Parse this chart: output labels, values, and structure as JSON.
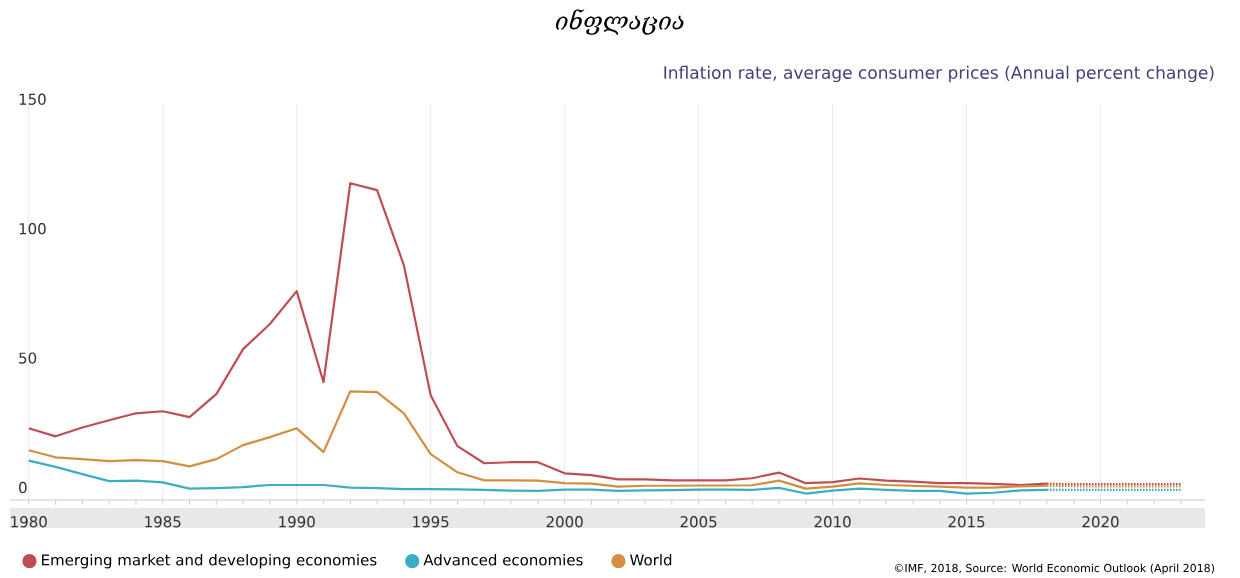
{
  "chart_data": {
    "type": "line",
    "title": "ინფლაცია",
    "subtitle": "Inflation rate, average consumer prices (Annual percent change)",
    "annotations": [
      "©IMF, 2018, Source: World Economic Outlook (April 2018)"
    ],
    "x": [
      1980,
      1981,
      1982,
      1983,
      1984,
      1985,
      1986,
      1987,
      1988,
      1989,
      1990,
      1991,
      1992,
      1993,
      1994,
      1995,
      1996,
      1997,
      1998,
      1999,
      2000,
      2001,
      2002,
      2003,
      2004,
      2005,
      2006,
      2007,
      2008,
      2009,
      2010,
      2011,
      2012,
      2013,
      2014,
      2015,
      2016,
      2017,
      2018
    ],
    "series": [
      {
        "name": "Emerging market and developing economies",
        "color": "#bf4e54",
        "values": [
          24.7,
          21.6,
          25,
          27.8,
          30.5,
          31.3,
          29,
          37.9,
          55.3,
          65,
          77.7,
          42.5,
          119.4,
          116.7,
          87.7,
          37.5,
          17.8,
          11.2,
          11.6,
          11.6,
          7.3,
          6.6,
          5,
          5,
          4.6,
          4.6,
          4.6,
          5.4,
          7.6,
          3.5,
          3.9,
          5.3,
          4.5,
          4.1,
          3.5,
          3.5,
          3.2,
          2.8,
          3.3
        ]
      },
      {
        "name": "Advanced economies",
        "color": "#3aaec2",
        "values": [
          12.2,
          9.8,
          7,
          4.3,
          4.5,
          3.8,
          1.4,
          1.6,
          2,
          2.8,
          2.8,
          2.8,
          1.8,
          1.6,
          1.2,
          1.2,
          1.1,
          0.9,
          0.6,
          0.5,
          1,
          1,
          0.5,
          0.7,
          0.8,
          1,
          1,
          0.9,
          1.7,
          -0.5,
          0.6,
          1.4,
          0.9,
          0.5,
          0.5,
          -0.5,
          -0.2,
          0.7,
          0.9
        ]
      },
      {
        "name": "World",
        "color": "#d38f3f",
        "values": [
          16.2,
          13.5,
          12.8,
          12,
          12.4,
          12,
          10,
          12.8,
          18.2,
          21.3,
          24.7,
          15.5,
          39,
          38.7,
          30.5,
          14.7,
          7.7,
          4.6,
          4.6,
          4.5,
          3.5,
          3.3,
          2.2,
          2.5,
          2.5,
          2.6,
          2.6,
          2.7,
          4.5,
          1.4,
          2.2,
          3.4,
          2.8,
          2.5,
          2.2,
          1.8,
          1.8,
          2.3,
          2.5
        ]
      },
      {
        "color": "#bf4e54",
        "line_style": "dotted",
        "x": [
          2018,
          2019,
          2020,
          2021,
          2022,
          2023
        ],
        "values": [
          3.3,
          3.1,
          3.1,
          3.1,
          3.1,
          3.1
        ]
      },
      {
        "color": "#3aaec2",
        "line_style": "dotted",
        "x": [
          2018,
          2019,
          2020,
          2021,
          2022,
          2023
        ],
        "values": [
          0.9,
          0.9,
          0.9,
          0.9,
          0.9,
          0.9
        ]
      },
      {
        "color": "#d38f3f",
        "line_style": "dotted",
        "x": [
          2018,
          2019,
          2020,
          2021,
          2022,
          2023
        ],
        "values": [
          2.5,
          2.3,
          2.3,
          2.3,
          2.3,
          2.3
        ]
      }
    ],
    "xlim": [
      1979.3,
      2023.9
    ],
    "ylim": [
      -3,
      150
    ],
    "xticks": [
      1980,
      {
        "value": 1981,
        "label": null
      },
      {
        "value": 1982,
        "label": null
      },
      {
        "value": 1983,
        "label": null
      },
      {
        "value": 1984,
        "label": null
      },
      1985,
      {
        "value": 1986,
        "label": null
      },
      {
        "value": 1987,
        "label": null
      },
      {
        "value": 1988,
        "label": null
      },
      {
        "value": 1989,
        "label": null
      },
      1990,
      {
        "value": 1991,
        "label": null
      },
      {
        "value": 1992,
        "label": null
      },
      {
        "value": 1993,
        "label": null
      },
      {
        "value": 1994,
        "label": null
      },
      1995,
      {
        "value": 1996,
        "label": null
      },
      {
        "value": 1997,
        "label": null
      },
      {
        "value": 1998,
        "label": null
      },
      {
        "value": 1999,
        "label": null
      },
      2000,
      {
        "value": 2001,
        "label": null
      },
      {
        "value": 2002,
        "label": null
      },
      {
        "value": 2003,
        "label": null
      },
      {
        "value": 2004,
        "label": null
      },
      2005,
      {
        "value": 2006,
        "label": null
      },
      {
        "value": 2007,
        "label": null
      },
      {
        "value": 2008,
        "label": null
      },
      {
        "value": 2009,
        "label": null
      },
      2010,
      {
        "value": 2011,
        "label": null
      },
      {
        "value": 2012,
        "label": null
      },
      {
        "value": 2013,
        "label": null
      },
      {
        "value": 2014,
        "label": null
      },
      2015,
      {
        "value": 2016,
        "label": null
      },
      {
        "value": 2017,
        "label": null
      },
      {
        "value": 2018,
        "label": null
      },
      {
        "value": 2019,
        "label": null
      },
      2020,
      {
        "value": 2021,
        "label": null
      },
      {
        "value": 2022,
        "label": null
      },
      {
        "value": 2023,
        "label": null
      }
    ],
    "yticks": [
      0,
      50,
      100,
      150
    ],
    "grid": "x",
    "legend": "bottom",
    "marker": "none",
    "line_style": "solid"
  }
}
